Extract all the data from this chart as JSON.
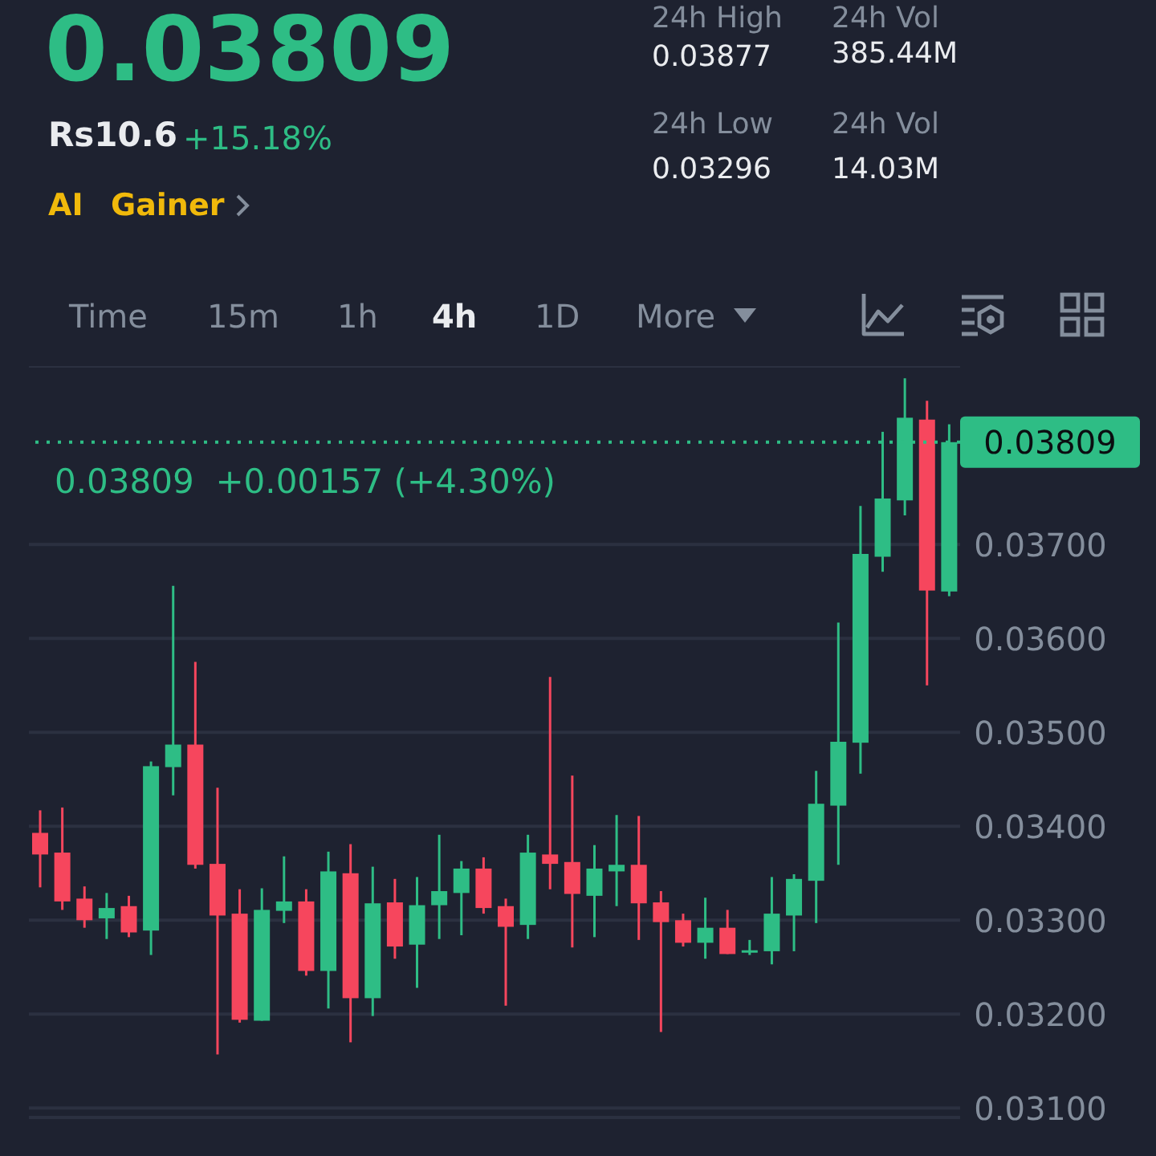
{
  "chart_data": {
    "type": "candlestick",
    "title": "0.03809",
    "annotations": [
      "Rs10.6",
      "+15.18%",
      "AI",
      "Gainer",
      "24h High",
      "0.03877",
      "24h Vol",
      "385.44M",
      "24h Low",
      "0.03296",
      "24h Vol",
      "14.03M",
      "Time",
      "15m",
      "1h",
      "4h",
      "1D",
      "More",
      "0.03809  +0.00157 (+4.30%)"
    ],
    "categories": [
      null,
      null,
      null,
      null,
      null,
      null,
      null,
      null,
      null,
      null,
      null,
      null,
      null,
      null,
      null,
      null,
      null,
      null,
      null,
      null,
      null,
      null,
      null,
      null,
      null,
      null,
      null,
      null,
      null,
      null,
      null,
      null,
      null,
      null,
      null,
      null,
      null,
      null,
      null,
      null,
      null,
      null
    ],
    "colors": [
      "#f6465d",
      "#f6465d",
      "#f6465d",
      "#2ebd85",
      "#f6465d",
      "#2ebd85",
      "#2ebd85",
      "#f6465d",
      "#f6465d",
      "#f6465d",
      "#2ebd85",
      "#2ebd85",
      "#f6465d",
      "#2ebd85",
      "#f6465d",
      "#2ebd85",
      "#f6465d",
      "#2ebd85",
      "#2ebd85",
      "#2ebd85",
      "#f6465d",
      "#f6465d",
      "#2ebd85",
      "#f6465d",
      "#f6465d",
      "#2ebd85",
      "#2ebd85",
      "#f6465d",
      "#f6465d",
      "#f6465d",
      "#2ebd85",
      "#f6465d",
      "#2ebd85",
      "#2ebd85",
      "#2ebd85",
      "#2ebd85",
      "#2ebd85",
      "#2ebd85",
      "#2ebd85",
      "#2ebd85",
      "#f6465d",
      "#2ebd85"
    ],
    "ohlc": [
      [
        0.03393,
        0.03417,
        0.03335,
        0.0337
      ],
      [
        0.03372,
        0.0342,
        0.03311,
        0.0332
      ],
      [
        0.03323,
        0.03336,
        0.03292,
        0.033
      ],
      [
        0.03302,
        0.03329,
        0.0328,
        0.03313
      ],
      [
        0.03315,
        0.03326,
        0.03282,
        0.03287
      ],
      [
        0.03289,
        0.03469,
        0.03263,
        0.03464
      ],
      [
        0.03463,
        0.03656,
        0.03433,
        0.03487
      ],
      [
        0.03487,
        0.03575,
        0.03355,
        0.03359
      ],
      [
        0.0336,
        0.03441,
        0.03157,
        0.03305
      ],
      [
        0.03307,
        0.03333,
        0.03191,
        0.03194
      ],
      [
        0.03193,
        0.03334,
        0.03193,
        0.03311
      ],
      [
        0.0331,
        0.03368,
        0.03297,
        0.0332
      ],
      [
        0.0332,
        0.03333,
        0.03241,
        0.03246
      ],
      [
        0.03246,
        0.03373,
        0.03206,
        0.03352
      ],
      [
        0.0335,
        0.03381,
        0.0317,
        0.03217
      ],
      [
        0.03217,
        0.03357,
        0.03198,
        0.03318
      ],
      [
        0.03319,
        0.03344,
        0.03259,
        0.03272
      ],
      [
        0.03274,
        0.03346,
        0.03228,
        0.03316
      ],
      [
        0.03316,
        0.03391,
        0.0328,
        0.03331
      ],
      [
        0.03329,
        0.03363,
        0.03284,
        0.03355
      ],
      [
        0.03355,
        0.03367,
        0.03307,
        0.03313
      ],
      [
        0.03315,
        0.03323,
        0.03209,
        0.03293
      ],
      [
        0.03295,
        0.03391,
        0.0328,
        0.03372
      ],
      [
        0.0337,
        0.03559,
        0.03333,
        0.0336
      ],
      [
        0.03362,
        0.03454,
        0.03271,
        0.03328
      ],
      [
        0.03326,
        0.0338,
        0.03282,
        0.03355
      ],
      [
        0.03352,
        0.03412,
        0.03315,
        0.03359
      ],
      [
        0.03359,
        0.03411,
        0.03279,
        0.03318
      ],
      [
        0.03319,
        0.03331,
        0.03181,
        0.03298
      ],
      [
        0.033,
        0.03307,
        0.03272,
        0.03276
      ],
      [
        0.03276,
        0.03324,
        0.03259,
        0.03292
      ],
      [
        0.03292,
        0.03311,
        0.03264,
        0.03264
      ],
      [
        0.03268,
        0.03279,
        0.03263,
        0.03268
      ],
      [
        0.03267,
        0.03346,
        0.03253,
        0.03307
      ],
      [
        0.03305,
        0.03349,
        0.03267,
        0.03344
      ],
      [
        0.03342,
        0.03459,
        0.03297,
        0.03424
      ],
      [
        0.03422,
        0.03617,
        0.03359,
        0.0349
      ],
      [
        0.03489,
        0.03741,
        0.03456,
        0.0369
      ],
      [
        0.03687,
        0.0382,
        0.03671,
        0.03749
      ],
      [
        0.03747,
        0.03877,
        0.03731,
        0.03835
      ],
      [
        0.03833,
        0.03853,
        0.0355,
        0.03651
      ],
      [
        0.0365,
        0.03828,
        0.03645,
        0.03809
      ]
    ],
    "ylim": [
      0.0309,
      0.0389
    ],
    "yticks": [
      {
        "value": 0.031,
        "label": "0.03100"
      },
      {
        "value": 0.032,
        "label": "0.03200"
      },
      {
        "value": 0.033,
        "label": "0.03300"
      },
      {
        "value": 0.034,
        "label": "0.03400"
      },
      {
        "value": 0.035,
        "label": "0.03500"
      },
      {
        "value": 0.036,
        "label": "0.03600"
      },
      {
        "value": 0.037,
        "label": "0.03700"
      }
    ],
    "ref_lines": [
      {
        "axis": "y",
        "value": 0.03809,
        "label": "0.03809",
        "color": "#2ebd85",
        "line_style": "dotted"
      }
    ],
    "grid": "y"
  }
}
